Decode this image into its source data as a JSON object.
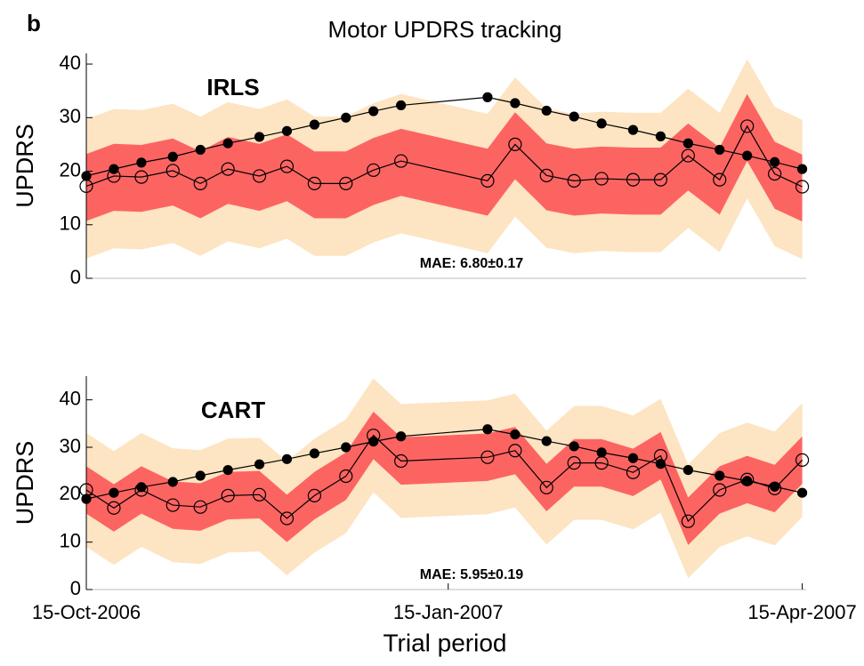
{
  "panel_label": "b",
  "title": "Motor UPDRS tracking",
  "xlabel": "Trial period",
  "chart_data": [
    {
      "type": "line",
      "label": "IRLS",
      "ylabel": "UPDRS",
      "annotation": "MAE: 6.80±0.17",
      "x": [
        0,
        7,
        14,
        22,
        29,
        36,
        44,
        51,
        58,
        66,
        73,
        80,
        102,
        109,
        117,
        124,
        131,
        139,
        146,
        153,
        161,
        168,
        175,
        182
      ],
      "xlim": [
        0,
        183
      ],
      "ylim": [
        0,
        42
      ],
      "yticks": [
        0,
        10,
        20,
        30,
        40
      ],
      "bands": [
        {
          "color": "#fde4c2",
          "upper": [
            29.7,
            31.6,
            31.4,
            32.6,
            30.2,
            32.9,
            31.6,
            33.4,
            30.2,
            30.2,
            32.7,
            34.4,
            30.7,
            37.5,
            31.7,
            30.7,
            31.1,
            30.9,
            30.9,
            35.4,
            30.9,
            40.9,
            32.0,
            29.6
          ],
          "lower": [
            3.7,
            5.6,
            5.4,
            6.6,
            4.2,
            6.9,
            5.6,
            7.4,
            4.2,
            4.2,
            6.7,
            8.4,
            4.7,
            11.5,
            5.7,
            4.7,
            5.1,
            4.9,
            4.9,
            9.4,
            4.9,
            14.9,
            6.0,
            3.6
          ]
        },
        {
          "color": "#fc6462",
          "upper": [
            23.2,
            25.1,
            24.9,
            26.1,
            23.7,
            26.4,
            25.1,
            26.9,
            23.7,
            23.7,
            26.2,
            27.9,
            24.2,
            31.0,
            25.2,
            24.2,
            24.6,
            24.4,
            24.4,
            28.9,
            24.4,
            34.4,
            25.5,
            23.1
          ],
          "lower": [
            10.7,
            12.6,
            12.4,
            13.6,
            11.2,
            13.9,
            12.6,
            14.4,
            11.2,
            11.2,
            13.7,
            15.4,
            11.7,
            18.5,
            12.7,
            11.7,
            12.1,
            11.9,
            11.9,
            16.4,
            11.9,
            21.9,
            13.0,
            10.6
          ]
        }
      ],
      "series": [
        {
          "color": "#000000",
          "marker": "filled",
          "values": [
            19.1,
            20.4,
            21.6,
            22.7,
            24.0,
            25.2,
            26.4,
            27.5,
            28.7,
            30.0,
            31.2,
            32.3,
            33.8,
            32.7,
            31.3,
            30.2,
            28.9,
            27.7,
            26.5,
            25.2,
            24.0,
            22.9,
            21.7,
            20.4
          ]
        },
        {
          "color": "#000000",
          "marker": "open",
          "values": [
            17.2,
            19.1,
            18.9,
            20.1,
            17.7,
            20.4,
            19.1,
            20.9,
            17.7,
            17.7,
            20.2,
            21.9,
            18.2,
            25.0,
            19.2,
            18.2,
            18.6,
            18.4,
            18.4,
            22.9,
            18.4,
            28.4,
            19.5,
            17.1
          ]
        }
      ]
    },
    {
      "type": "line",
      "label": "CART",
      "ylabel": "UPDRS",
      "annotation": "MAE: 5.95±0.19",
      "x": [
        0,
        7,
        14,
        22,
        29,
        36,
        44,
        51,
        58,
        66,
        73,
        80,
        102,
        109,
        117,
        124,
        131,
        139,
        146,
        153,
        161,
        168,
        175,
        182
      ],
      "xlim": [
        0,
        183
      ],
      "xticks": [
        {
          "value": 0,
          "label": "15-Oct-2006"
        },
        {
          "value": 92,
          "label": "15-Jan-2007"
        },
        {
          "value": 182,
          "label": "15-Apr-2007"
        }
      ],
      "ylim": [
        0,
        45
      ],
      "yticks": [
        0,
        10,
        20,
        30,
        40
      ],
      "bands": [
        {
          "color": "#fde4c2",
          "upper": [
            33.0,
            29.2,
            33.0,
            29.8,
            29.4,
            31.8,
            32.0,
            27.0,
            31.8,
            35.9,
            44.5,
            39.1,
            39.9,
            41.3,
            33.5,
            38.7,
            38.7,
            36.7,
            40.2,
            26.4,
            33.0,
            35.2,
            33.3,
            39.3
          ],
          "lower": [
            9.0,
            5.2,
            9.0,
            5.8,
            5.4,
            7.8,
            8.0,
            3.0,
            7.8,
            11.9,
            20.5,
            15.1,
            15.9,
            17.3,
            9.5,
            14.7,
            14.7,
            12.7,
            16.2,
            2.4,
            9.0,
            11.2,
            9.3,
            15.3
          ]
        },
        {
          "color": "#fc6462",
          "upper": [
            26.0,
            22.2,
            26.0,
            22.8,
            22.4,
            24.8,
            25.0,
            20.0,
            24.8,
            28.9,
            37.5,
            32.1,
            32.9,
            34.3,
            26.5,
            31.7,
            31.7,
            29.7,
            33.2,
            19.4,
            26.0,
            28.2,
            26.3,
            32.3
          ],
          "lower": [
            16.0,
            12.2,
            16.0,
            12.8,
            12.4,
            14.8,
            15.0,
            10.0,
            14.8,
            18.9,
            27.5,
            22.1,
            22.9,
            24.3,
            16.5,
            21.7,
            21.7,
            19.7,
            23.2,
            9.4,
            16.0,
            18.2,
            16.3,
            22.3
          ]
        }
      ],
      "series": [
        {
          "color": "#000000",
          "marker": "filled",
          "values": [
            19.1,
            20.4,
            21.6,
            22.7,
            24.0,
            25.2,
            26.4,
            27.5,
            28.7,
            30.0,
            31.2,
            32.3,
            33.8,
            32.7,
            31.3,
            30.2,
            28.9,
            27.7,
            26.5,
            25.2,
            24.0,
            22.9,
            21.7,
            20.4
          ]
        },
        {
          "color": "#000000",
          "marker": "open",
          "values": [
            21.0,
            17.2,
            21.0,
            17.8,
            17.4,
            19.8,
            20.0,
            15.0,
            19.8,
            23.9,
            32.5,
            27.1,
            27.9,
            29.3,
            21.5,
            26.7,
            26.7,
            24.7,
            28.2,
            14.4,
            21.0,
            23.2,
            21.3,
            27.3
          ]
        }
      ]
    }
  ]
}
